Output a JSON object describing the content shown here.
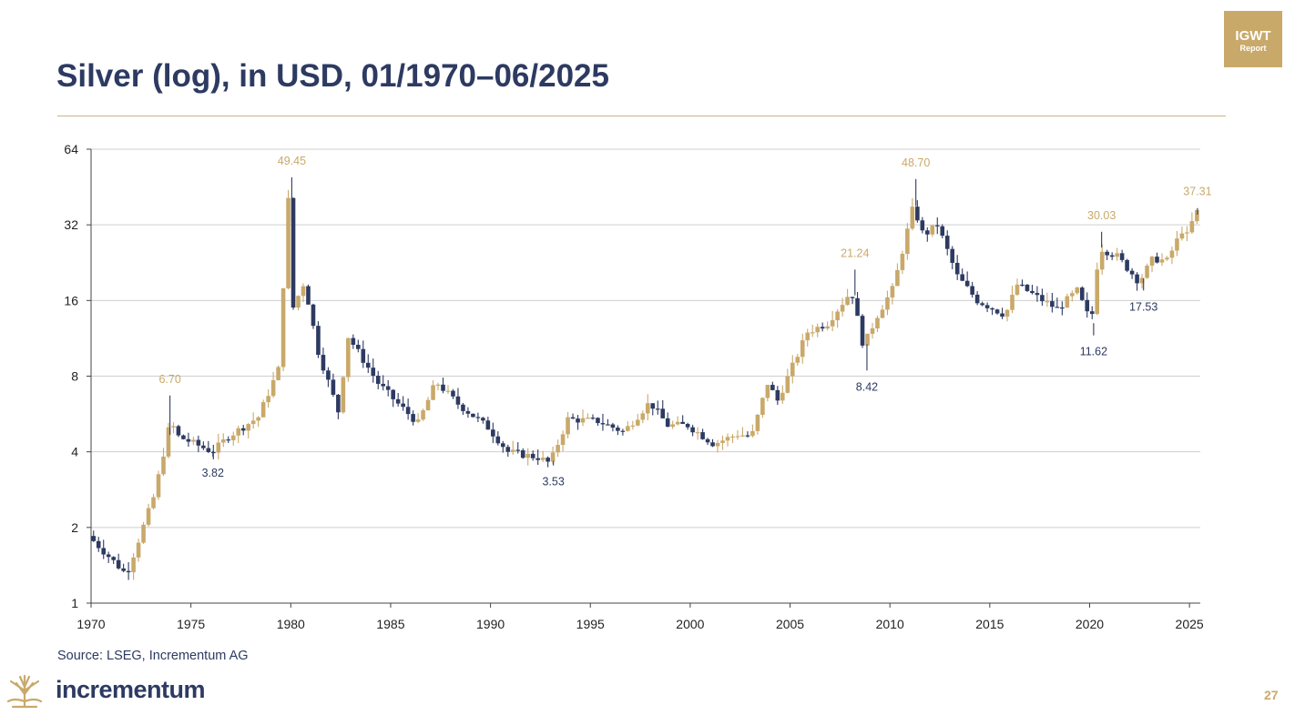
{
  "header": {
    "title": "Silver (log), in USD, 01/1970–06/2025"
  },
  "badge": {
    "line1": "IGWT",
    "line2": "Report"
  },
  "footer": {
    "source": "Source: LSEG, Incrementum AG",
    "brand": "incrementum",
    "page": "27"
  },
  "colors": {
    "up": "#c9a96a",
    "down": "#2d3a61",
    "title": "#2d3a61",
    "grid": "#cfcfcf"
  },
  "chart_data": {
    "type": "candlestick",
    "scale": "log2",
    "title": "Silver (log), in USD, 01/1970–06/2025",
    "xlim": [
      1970,
      2025.45
    ],
    "ylim": [
      1,
      64
    ],
    "y_ticks": [
      1,
      2,
      4,
      8,
      16,
      32,
      64
    ],
    "x_ticks": [
      1970,
      1975,
      1980,
      1985,
      1990,
      1995,
      2000,
      2005,
      2010,
      2015,
      2020,
      2025
    ],
    "grid": true,
    "key_points": [
      [
        1970,
        1.85
      ],
      [
        1971.9,
        1.3
      ],
      [
        1973.3,
        2.7
      ],
      [
        1974.1,
        5.3
      ],
      [
        1974.5,
        4.6
      ],
      [
        1976.2,
        4.0
      ],
      [
        1977,
        4.6
      ],
      [
        1978.5,
        5.5
      ],
      [
        1979.5,
        8.5
      ],
      [
        1980.0,
        40
      ],
      [
        1980.25,
        15
      ],
      [
        1980.8,
        19
      ],
      [
        1981.5,
        10
      ],
      [
        1982.5,
        5.8
      ],
      [
        1983.0,
        11.5
      ],
      [
        1984.5,
        7.5
      ],
      [
        1985.5,
        6.2
      ],
      [
        1986.5,
        5.2
      ],
      [
        1987.4,
        7.6
      ],
      [
        1988.5,
        6.2
      ],
      [
        1990.0,
        5.0
      ],
      [
        1991.0,
        4.0
      ],
      [
        1992.5,
        3.8
      ],
      [
        1993.1,
        3.6
      ],
      [
        1994.0,
        5.4
      ],
      [
        1995.5,
        5.3
      ],
      [
        1996.8,
        4.8
      ],
      [
        1998.1,
        6.3
      ],
      [
        1999.0,
        5.1
      ],
      [
        2000.0,
        5.1
      ],
      [
        2001.3,
        4.3
      ],
      [
        2002.5,
        4.7
      ],
      [
        2003.2,
        4.6
      ],
      [
        2004.0,
        7.5
      ],
      [
        2004.5,
        6.4
      ],
      [
        2006.0,
        12
      ],
      [
        2007.0,
        13
      ],
      [
        2008.2,
        17.5
      ],
      [
        2008.8,
        10.5
      ],
      [
        2009.5,
        14
      ],
      [
        2010.3,
        18
      ],
      [
        2011.3,
        38
      ],
      [
        2011.8,
        29
      ],
      [
        2012.5,
        32
      ],
      [
        2013.5,
        20
      ],
      [
        2014.5,
        16
      ],
      [
        2015.9,
        14
      ],
      [
        2016.5,
        18.5
      ],
      [
        2017.5,
        16.5
      ],
      [
        2018.5,
        14.8
      ],
      [
        2019.5,
        17.5
      ],
      [
        2020.2,
        13
      ],
      [
        2020.6,
        26
      ],
      [
        2021.5,
        24
      ],
      [
        2022.6,
        19
      ],
      [
        2023.3,
        23.5
      ],
      [
        2024.0,
        23
      ],
      [
        2024.8,
        31
      ],
      [
        2025.0,
        29
      ],
      [
        2025.45,
        36
      ]
    ],
    "annotations": [
      {
        "label": "6.70",
        "x": 1973.95,
        "value": 6.7,
        "kind": "high"
      },
      {
        "label": "3.82",
        "x": 1976.1,
        "value": 3.82,
        "kind": "low"
      },
      {
        "label": "49.45",
        "x": 1980.05,
        "value": 49.45,
        "kind": "high"
      },
      {
        "label": "3.53",
        "x": 1993.15,
        "value": 3.53,
        "kind": "low"
      },
      {
        "label": "8.42",
        "x": 2008.85,
        "value": 8.42,
        "kind": "low"
      },
      {
        "label": "21.24",
        "x": 2008.25,
        "value": 21.24,
        "kind": "high"
      },
      {
        "label": "48.70",
        "x": 2011.3,
        "value": 48.7,
        "kind": "high"
      },
      {
        "label": "11.62",
        "x": 2020.2,
        "value": 11.62,
        "kind": "low"
      },
      {
        "label": "30.03",
        "x": 2020.6,
        "value": 30.03,
        "kind": "high"
      },
      {
        "label": "17.53",
        "x": 2022.7,
        "value": 17.53,
        "kind": "low"
      },
      {
        "label": "37.31",
        "x": 2025.4,
        "value": 37.31,
        "kind": "high"
      }
    ]
  }
}
